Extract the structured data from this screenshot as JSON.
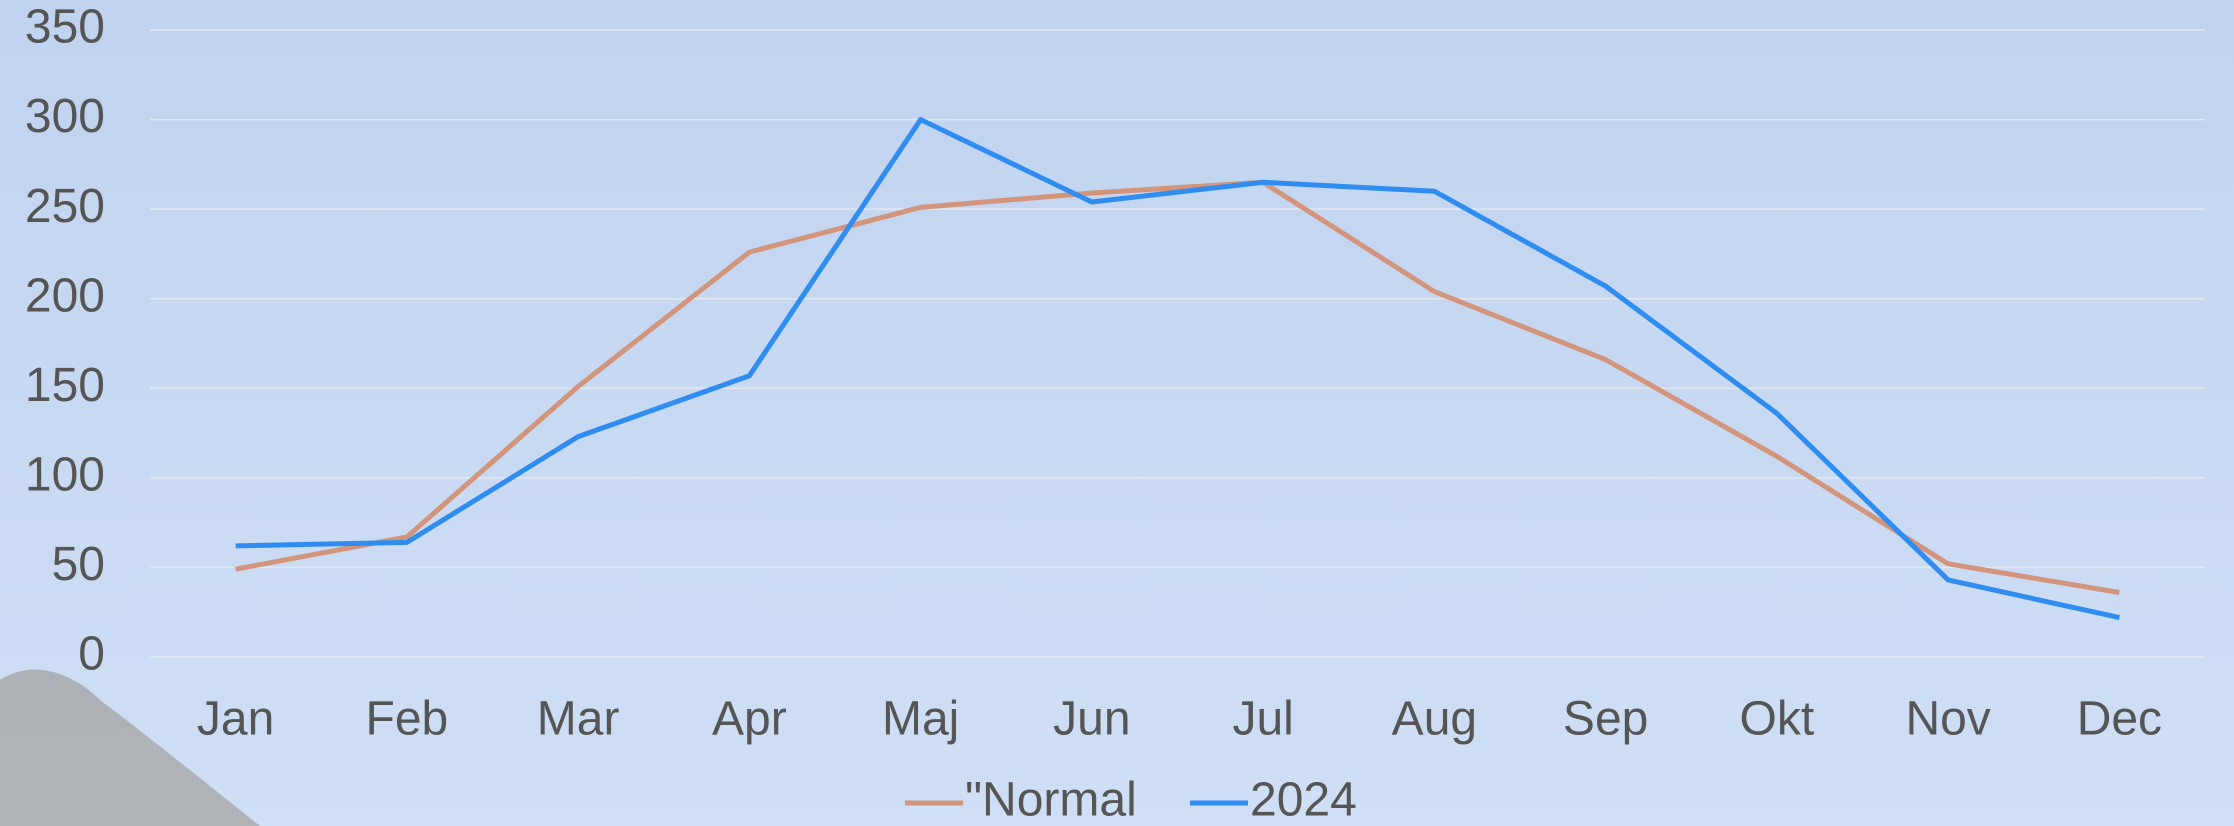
{
  "chart_data": {
    "type": "line",
    "categories": [
      "Jan",
      "Feb",
      "Mar",
      "Apr",
      "Maj",
      "Jun",
      "Jul",
      "Aug",
      "Sep",
      "Okt",
      "Nov",
      "Dec"
    ],
    "series": [
      {
        "name": "\"Normal",
        "color": "#d2957c",
        "values": [
          49,
          67,
          151,
          226,
          251,
          259,
          265,
          204,
          166,
          112,
          52,
          36
        ]
      },
      {
        "name": "2024",
        "color": "#2f8cf0",
        "values": [
          62,
          64,
          123,
          157,
          300,
          254,
          265,
          260,
          207,
          136,
          43,
          22
        ]
      }
    ],
    "ylim": [
      0,
      350
    ],
    "yticks": [
      0,
      50,
      100,
      150,
      200,
      250,
      300,
      350
    ],
    "grid": true,
    "legend": "bottom"
  }
}
